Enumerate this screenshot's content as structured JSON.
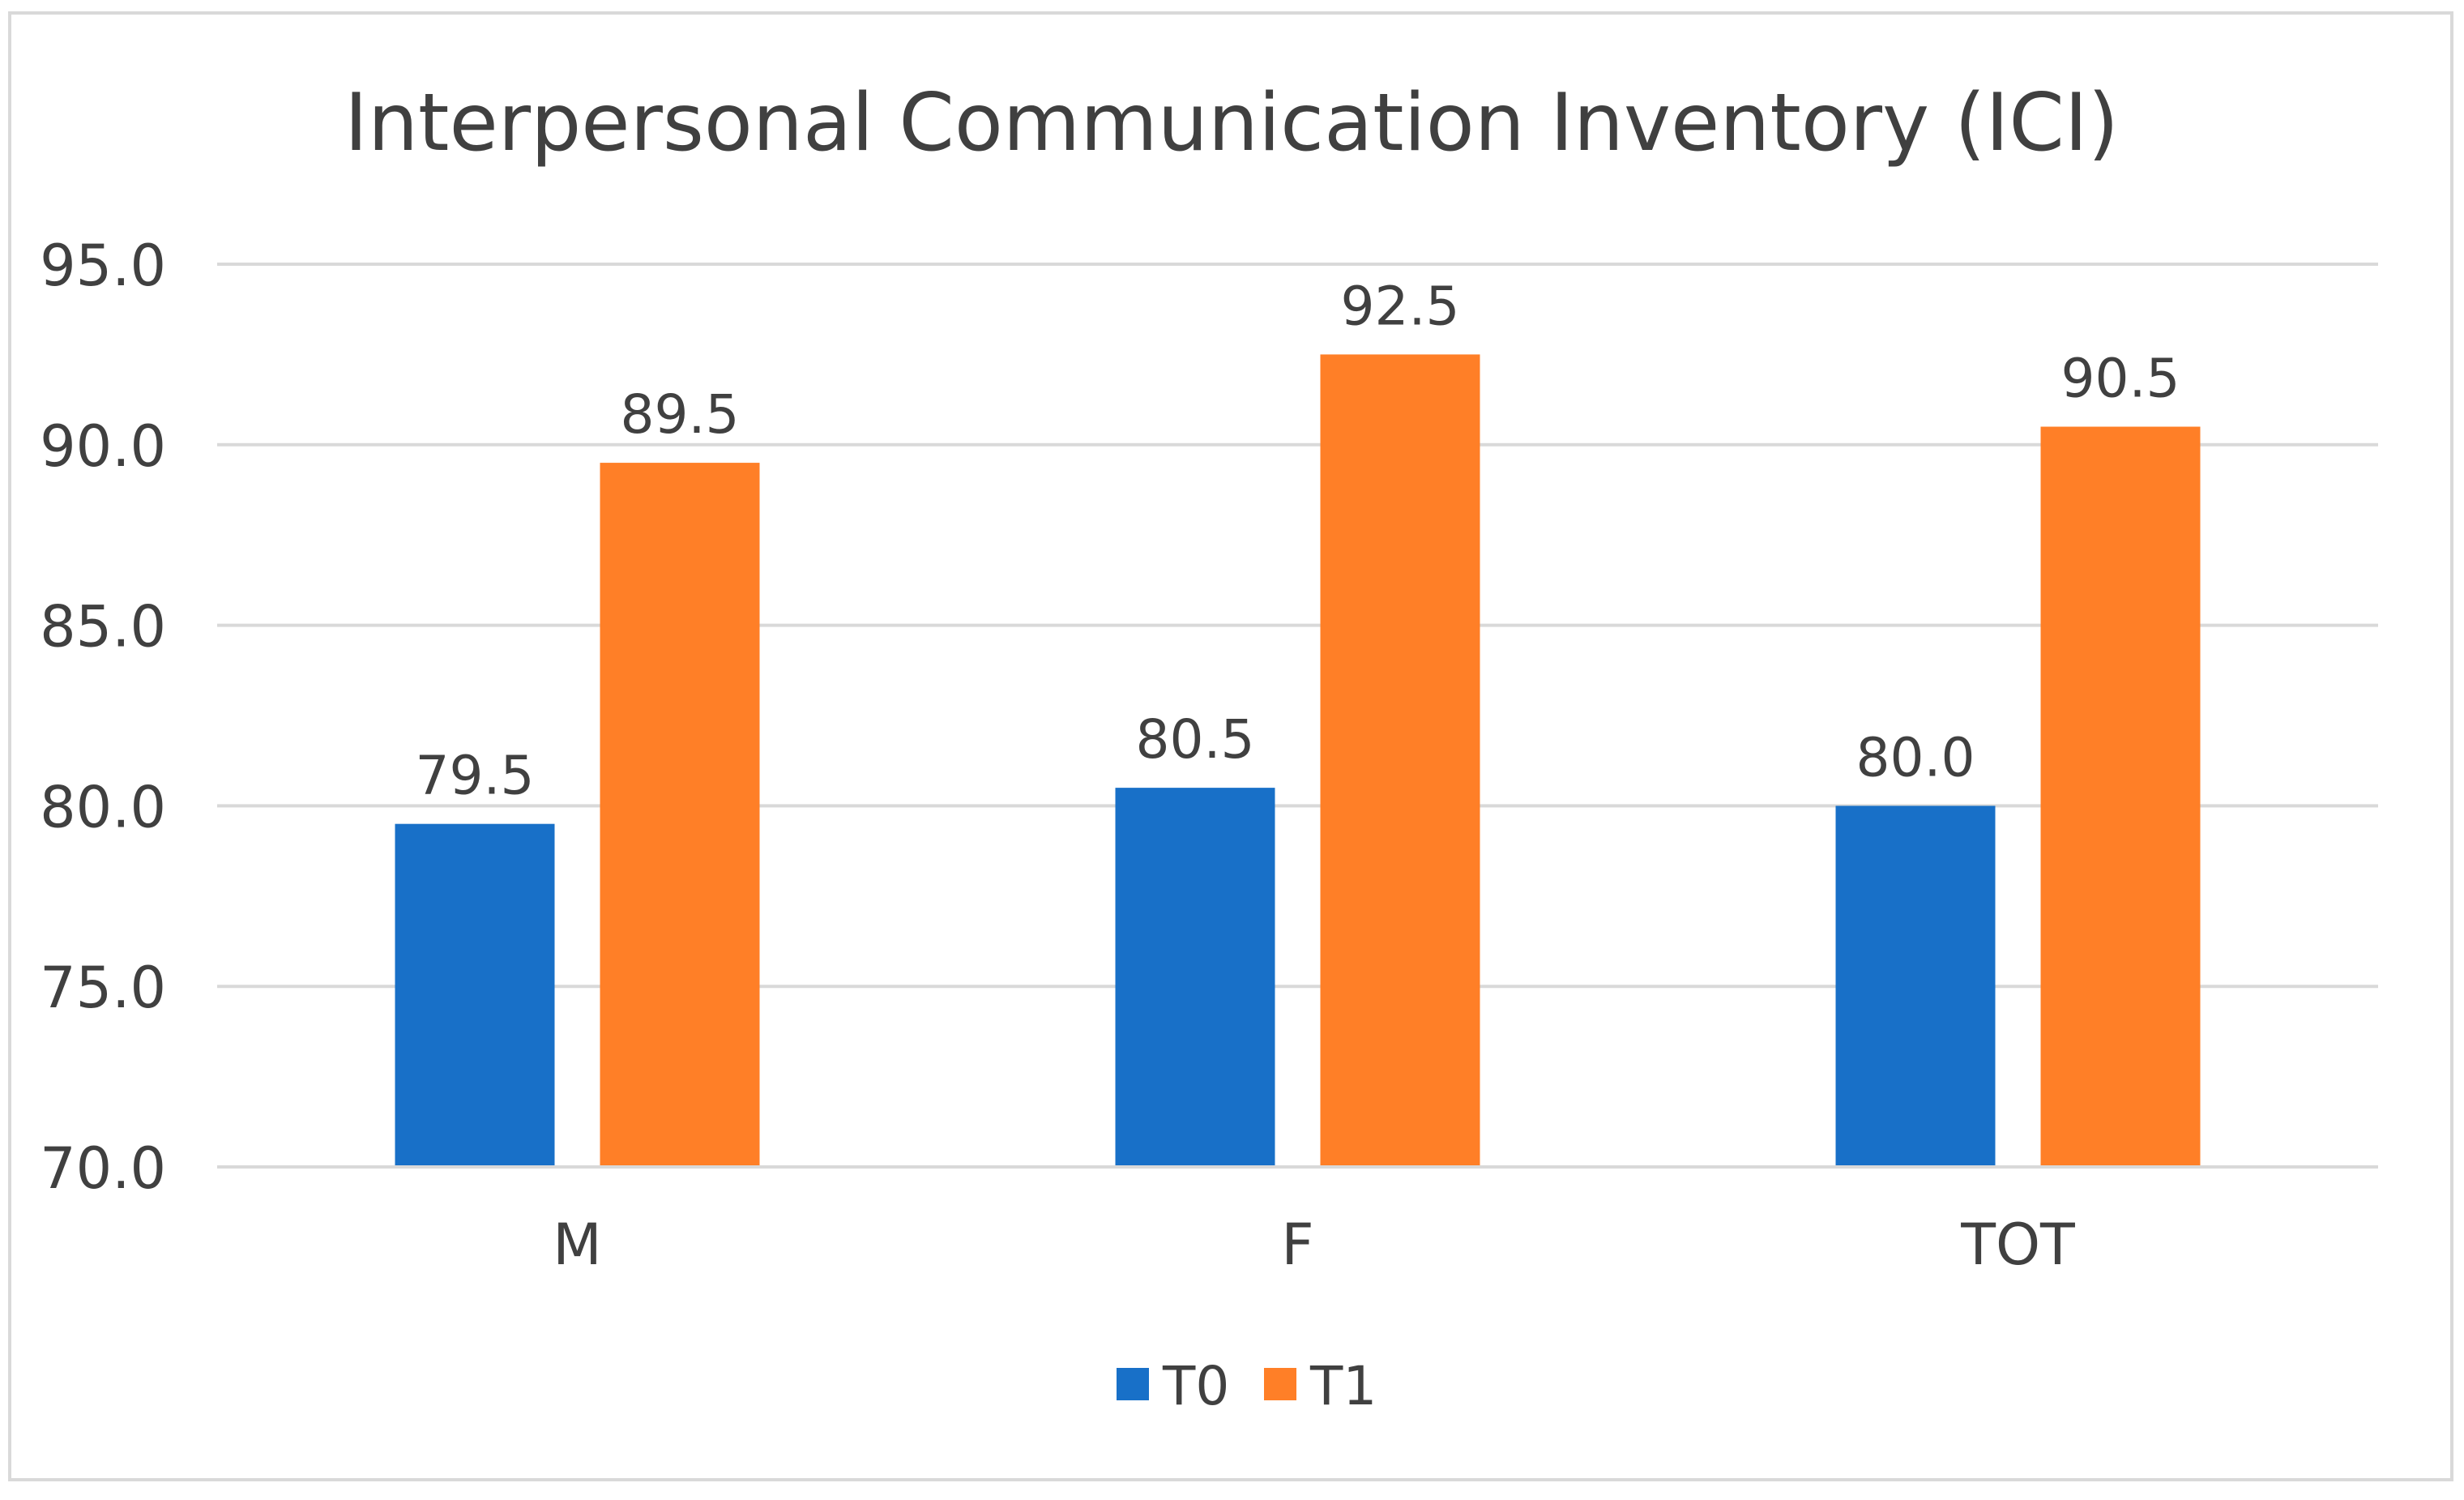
{
  "chart_data": {
    "type": "bar",
    "title": "Interpersonal Communication Inventory (ICI)",
    "categories": [
      "M",
      "F",
      "TOT"
    ],
    "series": [
      {
        "name": "T0",
        "values": [
          79.5,
          80.5,
          80.0
        ],
        "color": "#1870C8"
      },
      {
        "name": "T1",
        "values": [
          89.5,
          92.5,
          90.5
        ],
        "color": "#FF7F27"
      }
    ],
    "data_labels": [
      [
        "79.5",
        "80.5",
        "80.0"
      ],
      [
        "89.5",
        "92.5",
        "90.5"
      ]
    ],
    "ylim": [
      70.0,
      95.0
    ],
    "yticks": [
      "70.0",
      "75.0",
      "80.0",
      "85.0",
      "90.0",
      "95.0"
    ],
    "grid": true,
    "legend_position": "bottom",
    "xlabel": "",
    "ylabel": ""
  }
}
